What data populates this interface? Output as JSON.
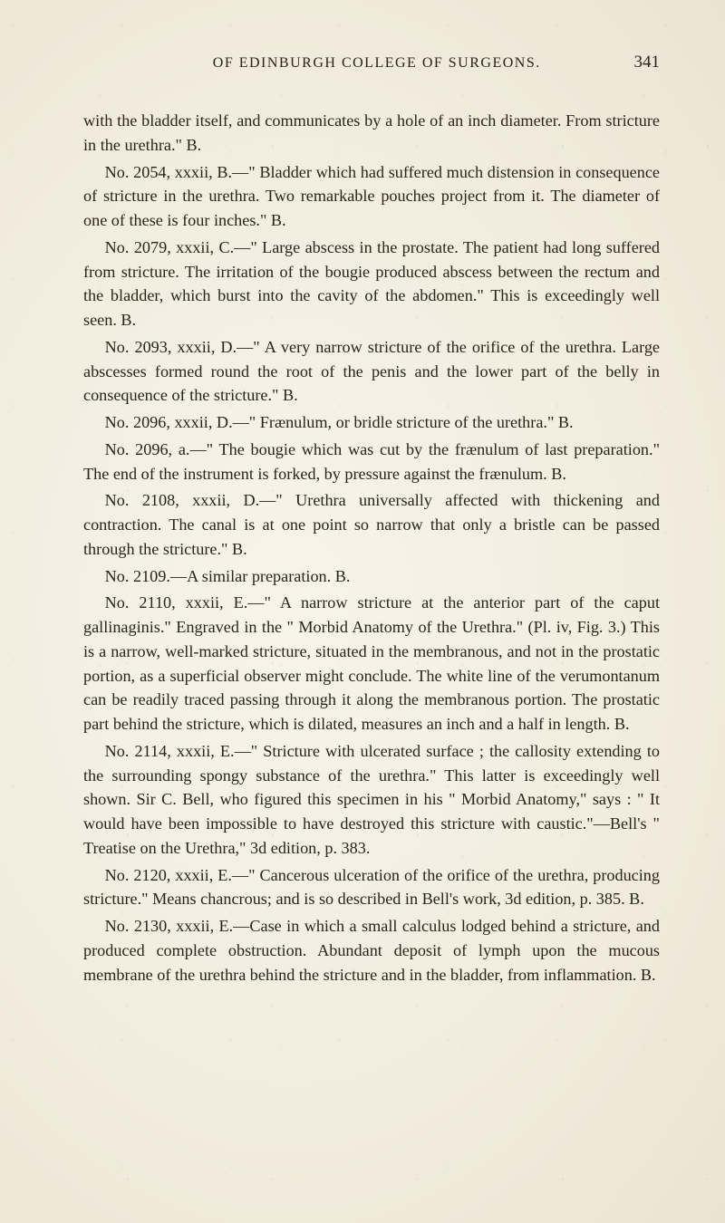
{
  "header": {
    "running_title": "OF EDINBURGH COLLEGE OF SURGEONS.",
    "page_number": "341"
  },
  "paragraphs": [
    {
      "cls": "cont",
      "text": "with the bladder itself, and communicates by a hole of an inch diameter. From stricture in the urethra.\" B."
    },
    {
      "cls": "",
      "text": "No. 2054, xxxii, B.—\" Bladder which had suffered much distension in consequence of stricture in the urethra. Two remarkable pouches project from it. The diameter of one of these is four inches.\" B."
    },
    {
      "cls": "",
      "text": "No. 2079, xxxii, C.—\" Large abscess in the prostate. The patient had long suffered from stricture. The irritation of the bougie produced abscess between the rectum and the bladder, which burst into the cavity of the abdomen.\" This is exceedingly well seen. B."
    },
    {
      "cls": "",
      "text": "No. 2093, xxxii, D.—\" A very narrow stricture of the orifice of the urethra. Large abscesses formed round the root of the penis and the lower part of the belly in consequence of the stricture.\" B."
    },
    {
      "cls": "",
      "text": "No. 2096, xxxii, D.—\" Frænulum, or bridle stricture of the urethra.\" B."
    },
    {
      "cls": "",
      "text": "No. 2096, a.—\" The bougie which was cut by the frænulum of last preparation.\" The end of the instrument is forked, by pressure against the frænulum. B."
    },
    {
      "cls": "",
      "text": "No. 2108, xxxii, D.—\" Urethra universally affected with thickening and contraction. The canal is at one point so narrow that only a bristle can be passed through the stricture.\" B."
    },
    {
      "cls": "",
      "text": "No. 2109.—A similar preparation. B."
    },
    {
      "cls": "",
      "text": "No. 2110, xxxii, E.—\" A narrow stricture at the anterior part of the caput gallinaginis.\" Engraved in the \" Morbid Anatomy of the Urethra.\" (Pl. iv, Fig. 3.) This is a narrow, well-marked stricture, situated in the membranous, and not in the prostatic portion, as a superficial observer might conclude. The white line of the verumontanum can be readily traced passing through it along the membranous portion. The prostatic part behind the stricture, which is dilated, measures an inch and a half in length. B."
    },
    {
      "cls": "",
      "text": "No. 2114, xxxii, E.—\" Stricture with ulcerated surface ; the callosity extending to the surrounding spongy substance of the urethra.\" This latter is exceedingly well shown. Sir C. Bell, who figured this specimen in his \" Morbid Anatomy,\" says : \" It would have been impossible to have destroyed this stricture with caustic.\"—Bell's \" Treatise on the Urethra,\" 3d edition, p. 383."
    },
    {
      "cls": "",
      "text": "No. 2120, xxxii, E.—\" Cancerous ulceration of the orifice of the urethra, producing stricture.\" Means chancrous; and is so described in Bell's work, 3d edition, p. 385. B."
    },
    {
      "cls": "",
      "text": "No. 2130, xxxii, E.—Case in which a small calculus lodged behind a stricture, and produced complete obstruction. Abundant deposit of lymph upon the mucous membrane of the urethra behind the stricture and in the bladder, from inflammation. B."
    }
  ]
}
